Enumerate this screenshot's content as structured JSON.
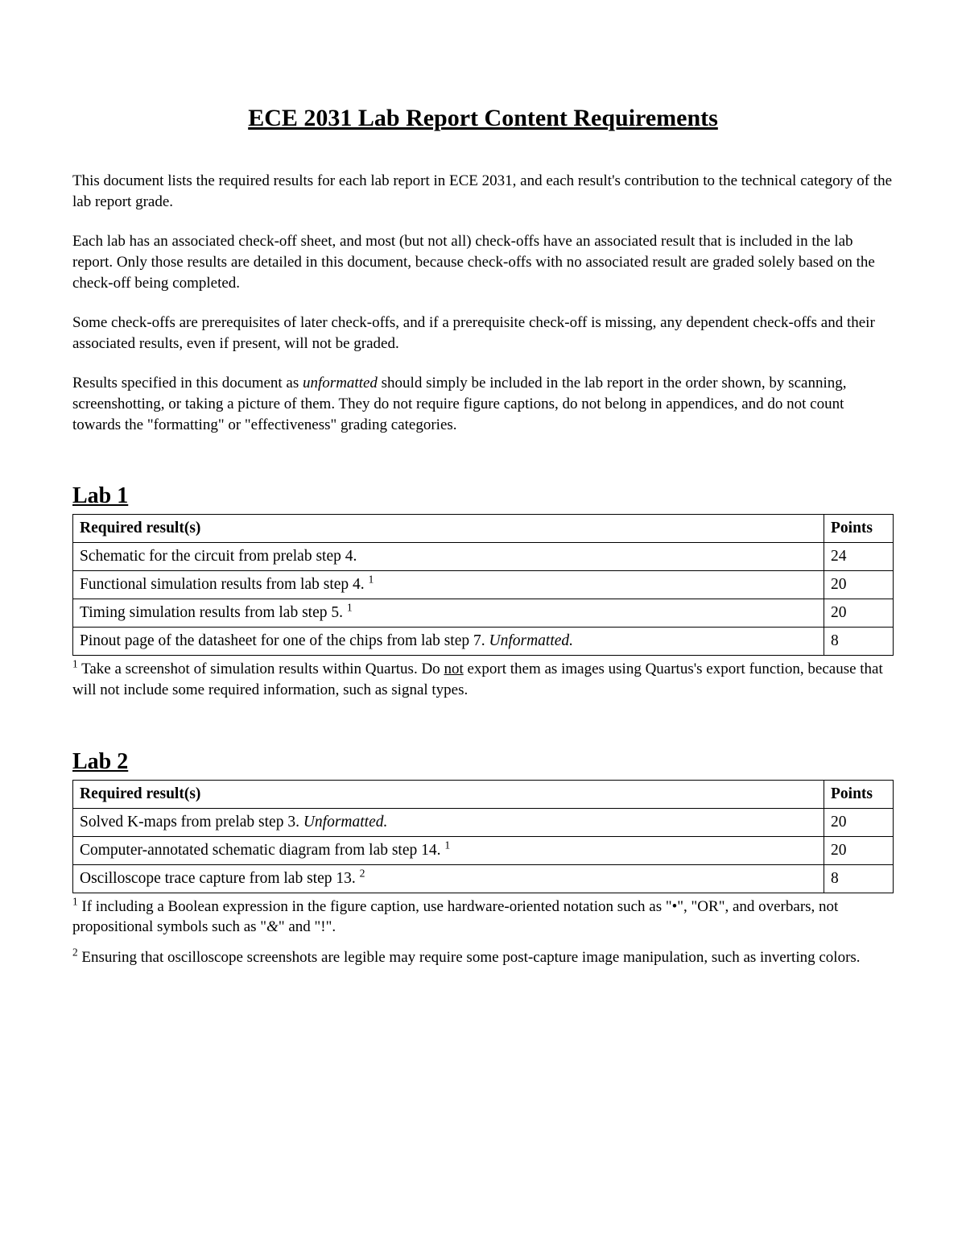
{
  "title": "ECE 2031 Lab Report Content Requirements",
  "intro": {
    "p1": "This document lists the required results for each lab report in ECE 2031, and each result's contribution to the technical category of the lab report grade.",
    "p2": "Each lab has an associated check-off sheet, and most (but not all) check-offs have an associated result that is included in the lab report. Only those results are detailed in this document, because check-offs with no associated result are graded solely based on the check-off being completed.",
    "p3": "Some check-offs are prerequisites of later check-offs, and if a prerequisite check-off is missing, any dependent check-offs and their associated results, even if present, will not be graded.",
    "p4_a": "Results specified in this document as ",
    "p4_em": "unformatted",
    "p4_b": " should simply be included in the lab report in the order shown, by scanning, screenshotting, or taking a picture of them. They do not require figure captions, do not belong in appendices, and do not count towards the \"formatting\" or \"effectiveness\" grading categories."
  },
  "columns": {
    "result": "Required result(s)",
    "points": "Points"
  },
  "lab1": {
    "heading": "Lab 1",
    "rows": [
      {
        "text": "Schematic for the circuit from prelab step 4.",
        "sup": "",
        "em": "",
        "points": "24"
      },
      {
        "text": "Functional simulation results from lab step 4. ",
        "sup": "1",
        "em": "",
        "points": "20"
      },
      {
        "text": "Timing simulation results from lab step 5. ",
        "sup": "1",
        "em": "",
        "points": "20"
      },
      {
        "text": "Pinout page of the datasheet for one of the chips from lab step 7. ",
        "sup": "",
        "em": "Unformatted.",
        "points": "8"
      }
    ],
    "fn1_sup": "1",
    "fn1_a": " Take a screenshot of simulation results within Quartus. Do ",
    "fn1_not": "not",
    "fn1_b": " export them as images using Quartus's export function, because that will not include some required information, such as signal types."
  },
  "lab2": {
    "heading": "Lab 2",
    "rows": [
      {
        "text": "Solved K-maps from prelab step 3. ",
        "sup": "",
        "em": "Unformatted.",
        "points": "20"
      },
      {
        "text": "Computer-annotated schematic diagram from lab step 14. ",
        "sup": "1",
        "em": "",
        "points": "20"
      },
      {
        "text": "Oscilloscope trace capture from lab step 13. ",
        "sup": "2",
        "em": "",
        "points": "8"
      }
    ],
    "fn1_sup": "1",
    "fn1_a": " If including a Boolean expression in the figure caption, use hardware-oriented notation such as \"•\", \"OR\", and overbars, not propositional symbols such as \"",
    "fn1_amp": "&",
    "fn1_b": "\" and \"!\".",
    "fn2_sup": "2",
    "fn2": " Ensuring that oscilloscope screenshots are legible may require some post-capture image manipulation, such as inverting colors."
  }
}
